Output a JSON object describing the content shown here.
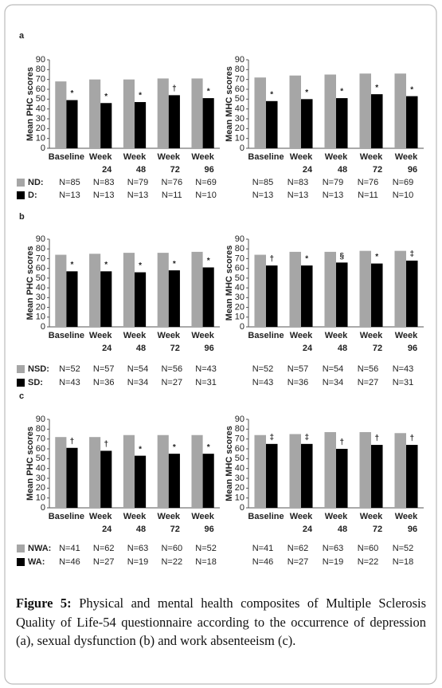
{
  "panels": [
    "a",
    "b",
    "c"
  ],
  "chart_data": [
    {
      "type": "bar",
      "y_label": "Mean PHC scores",
      "ylim": [
        0,
        90
      ],
      "yticks": [
        0,
        10,
        20,
        30,
        40,
        50,
        60,
        70,
        80,
        90
      ],
      "categories": [
        [
          "Baseline"
        ],
        [
          "Week",
          "24"
        ],
        [
          "Week",
          "48"
        ],
        [
          "Week",
          "72"
        ],
        [
          "Week",
          "96"
        ]
      ],
      "series": [
        {
          "name": "ND:",
          "color": "#a6a6a6",
          "values": [
            68,
            70,
            70,
            71,
            71
          ],
          "n": [
            "N=85",
            "N=83",
            "N=79",
            "N=76",
            "N=69"
          ]
        },
        {
          "name": "D:",
          "color": "#000000",
          "values": [
            49,
            46,
            47,
            54,
            51
          ],
          "n": [
            "N=13",
            "N=13",
            "N=13",
            "N=11",
            "N=10"
          ],
          "markers": [
            "*",
            "*",
            "*",
            "†",
            "*"
          ]
        }
      ]
    },
    {
      "type": "bar",
      "y_label": "Mean MHC scores",
      "ylim": [
        0,
        90
      ],
      "yticks": [
        0,
        10,
        20,
        30,
        40,
        50,
        60,
        70,
        80,
        90
      ],
      "categories": [
        [
          "Baseline"
        ],
        [
          "Week",
          "24"
        ],
        [
          "Week",
          "48"
        ],
        [
          "Week",
          "72"
        ],
        [
          "Week",
          "96"
        ]
      ],
      "series": [
        {
          "color": "#a6a6a6",
          "values": [
            72,
            74,
            75,
            76,
            76
          ],
          "n": [
            "N=85",
            "N=83",
            "N=79",
            "N=76",
            "N=69"
          ]
        },
        {
          "color": "#000000",
          "values": [
            48,
            50,
            51,
            55,
            53
          ],
          "n": [
            "N=13",
            "N=13",
            "N=13",
            "N=11",
            "N=10"
          ],
          "markers": [
            "*",
            "*",
            "*",
            "*",
            "*"
          ]
        }
      ]
    },
    {
      "type": "bar",
      "y_label": "Mean PHC scores",
      "ylim": [
        0,
        90
      ],
      "yticks": [
        0,
        10,
        20,
        30,
        40,
        50,
        60,
        70,
        80,
        90
      ],
      "categories": [
        [
          "Baseline"
        ],
        [
          "Week",
          "24"
        ],
        [
          "Week",
          "48"
        ],
        [
          "Week",
          "72"
        ],
        [
          "Week",
          "96"
        ]
      ],
      "series": [
        {
          "name": "NSD:",
          "color": "#a6a6a6",
          "values": [
            74,
            75,
            76,
            76,
            77
          ],
          "n": [
            "N=52",
            "N=57",
            "N=54",
            "N=56",
            "N=43"
          ]
        },
        {
          "name": "SD:",
          "color": "#000000",
          "values": [
            57,
            57,
            56,
            58,
            61
          ],
          "n": [
            "N=43",
            "N=36",
            "N=34",
            "N=27",
            "N=31"
          ],
          "markers": [
            "*",
            "*",
            "*",
            "*",
            "*"
          ]
        }
      ]
    },
    {
      "type": "bar",
      "y_label": "Mean MHC scores",
      "ylim": [
        0,
        90
      ],
      "yticks": [
        0,
        10,
        20,
        30,
        40,
        50,
        60,
        70,
        80,
        90
      ],
      "categories": [
        [
          "Baseline"
        ],
        [
          "Week",
          "24"
        ],
        [
          "Week",
          "48"
        ],
        [
          "Week",
          "72"
        ],
        [
          "Week",
          "96"
        ]
      ],
      "series": [
        {
          "color": "#a6a6a6",
          "values": [
            74,
            77,
            77,
            78,
            78
          ],
          "n": [
            "N=52",
            "N=57",
            "N=54",
            "N=56",
            "N=43"
          ]
        },
        {
          "color": "#000000",
          "values": [
            63,
            63,
            66,
            65,
            68
          ],
          "n": [
            "N=43",
            "N=36",
            "N=34",
            "N=27",
            "N=31"
          ],
          "markers": [
            "†",
            "*",
            "§",
            "*",
            "‡"
          ]
        }
      ]
    },
    {
      "type": "bar",
      "y_label": "Mean PHC scores",
      "ylim": [
        0,
        90
      ],
      "yticks": [
        0,
        10,
        20,
        30,
        40,
        50,
        60,
        70,
        80,
        90
      ],
      "categories": [
        [
          "Baseline"
        ],
        [
          "Week",
          "24"
        ],
        [
          "Week",
          "48"
        ],
        [
          "Week",
          "72"
        ],
        [
          "Week",
          "96"
        ]
      ],
      "series": [
        {
          "name": "NWA:",
          "color": "#a6a6a6",
          "values": [
            72,
            72,
            74,
            74,
            74
          ],
          "n": [
            "N=41",
            "N=62",
            "N=63",
            "N=60",
            "N=52"
          ]
        },
        {
          "name": "WA:",
          "color": "#000000",
          "values": [
            61,
            58,
            53,
            55,
            55
          ],
          "n": [
            "N=46",
            "N=27",
            "N=19",
            "N=22",
            "N=18"
          ],
          "markers": [
            "†",
            "†",
            "*",
            "*",
            "*"
          ]
        }
      ]
    },
    {
      "type": "bar",
      "y_label": "Mean MHC scores",
      "ylim": [
        0,
        90
      ],
      "yticks": [
        0,
        10,
        20,
        30,
        40,
        50,
        60,
        70,
        80,
        90
      ],
      "categories": [
        [
          "Baseline"
        ],
        [
          "Week",
          "24"
        ],
        [
          "Week",
          "48"
        ],
        [
          "Week",
          "72"
        ],
        [
          "Week",
          "96"
        ]
      ],
      "series": [
        {
          "color": "#a6a6a6",
          "values": [
            74,
            75,
            77,
            77,
            76
          ],
          "n": [
            "N=41",
            "N=62",
            "N=63",
            "N=60",
            "N=52"
          ]
        },
        {
          "color": "#000000",
          "values": [
            65,
            65,
            60,
            64,
            64
          ],
          "n": [
            "N=46",
            "N=27",
            "N=19",
            "N=22",
            "N=18"
          ],
          "markers": [
            "‡",
            "‡",
            "†",
            "†",
            "†"
          ]
        }
      ]
    }
  ],
  "caption": {
    "label": "Figure 5:",
    "text": "Physical and mental health composites of Multiple Sclerosis Quality of Life-54 questionnaire according to the occurrence of depression (a), sexual dysfunction (b) and work absenteeism (c)."
  }
}
